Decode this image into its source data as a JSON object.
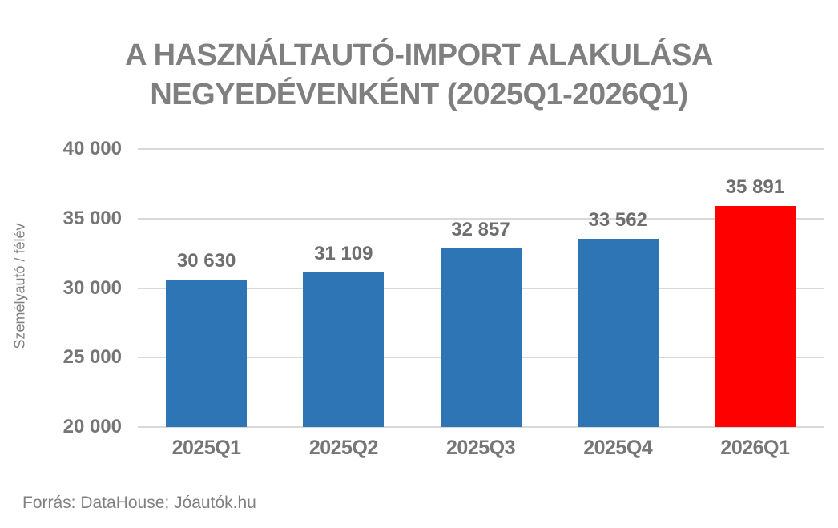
{
  "title_lines": [
    "A HASZNÁLTAUTÓ-IMPORT ALAKULÁSA",
    "NEGYEDÉVENKÉNT (2025Q1-2026Q1)"
  ],
  "chart_data": {
    "type": "bar",
    "title": "A HASZNÁLTAUTÓ-IMPORT ALAKULÁSA NEGYEDÉVENKÉNT (2025Q1-2026Q1)",
    "categories": [
      "2025Q1",
      "2025Q2",
      "2025Q3",
      "2025Q4",
      "2026Q1"
    ],
    "values": [
      30630,
      31109,
      32857,
      33562,
      35891
    ],
    "value_labels": [
      "30 630",
      "31 109",
      "32 857",
      "33 562",
      "35 891"
    ],
    "bar_colors": [
      "#2E75B6",
      "#2E75B6",
      "#2E75B6",
      "#2E75B6",
      "#FF0000"
    ],
    "highlighted_category": "2026Q1",
    "xlabel": "",
    "ylabel": "Személyautó / félév",
    "ylim": [
      20000,
      40000
    ],
    "yticks": [
      20000,
      25000,
      30000,
      35000,
      40000
    ],
    "ytick_labels": [
      "20 000",
      "25 000",
      "30 000",
      "35 000",
      "40 000"
    ],
    "grid": true,
    "legend": false
  },
  "source": "Forrás: DataHouse; Jóautók.hu",
  "colors": {
    "title_text": "#7F7F7F",
    "axis_text": "#767676",
    "value_label_text": "#6E6E6E",
    "source_text": "#808080",
    "gridline": "#D9D9D9",
    "bar_blue": "#2E75B6",
    "bar_red": "#FF0000",
    "background": "#FFFFFF"
  }
}
